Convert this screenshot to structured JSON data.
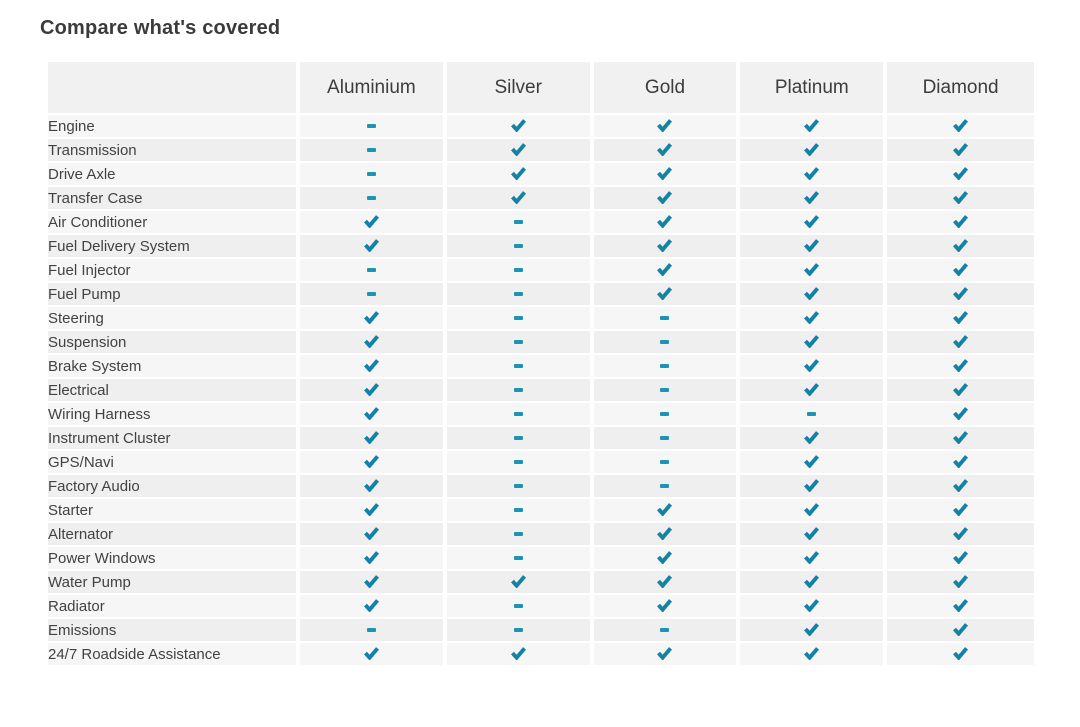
{
  "page": {
    "title": "Compare what's covered"
  },
  "colors": {
    "check_accent": "#1283a6",
    "dash_accent": "#1d93b5",
    "header_bg": "#f1f1f1",
    "row_odd_bg": "#f6f6f6",
    "row_even_bg": "#efefef",
    "title_text": "#3b3b3b",
    "label_text": "#424242"
  },
  "table": {
    "columns": [
      "Aluminium",
      "Silver",
      "Gold",
      "Platinum",
      "Diamond"
    ],
    "legend": {
      "check": "covered",
      "dash": "not-covered"
    },
    "rows": [
      {
        "label": "Engine",
        "values": [
          "dash",
          "check",
          "check",
          "check",
          "check"
        ]
      },
      {
        "label": "Transmission",
        "values": [
          "dash",
          "check",
          "check",
          "check",
          "check"
        ]
      },
      {
        "label": "Drive Axle",
        "values": [
          "dash",
          "check",
          "check",
          "check",
          "check"
        ]
      },
      {
        "label": "Transfer Case",
        "values": [
          "dash",
          "check",
          "check",
          "check",
          "check"
        ]
      },
      {
        "label": "Air Conditioner",
        "values": [
          "check",
          "dash",
          "check",
          "check",
          "check"
        ]
      },
      {
        "label": "Fuel Delivery System",
        "values": [
          "check",
          "dash",
          "check",
          "check",
          "check"
        ]
      },
      {
        "label": "Fuel Injector",
        "values": [
          "dash",
          "dash",
          "check",
          "check",
          "check"
        ]
      },
      {
        "label": "Fuel Pump",
        "values": [
          "dash",
          "dash",
          "check",
          "check",
          "check"
        ]
      },
      {
        "label": "Steering",
        "values": [
          "check",
          "dash",
          "dash",
          "check",
          "check"
        ]
      },
      {
        "label": "Suspension",
        "values": [
          "check",
          "dash",
          "dash",
          "check",
          "check"
        ]
      },
      {
        "label": "Brake System",
        "values": [
          "check",
          "dash",
          "dash",
          "check",
          "check"
        ]
      },
      {
        "label": "Electrical",
        "values": [
          "check",
          "dash",
          "dash",
          "check",
          "check"
        ]
      },
      {
        "label": "Wiring Harness",
        "values": [
          "check",
          "dash",
          "dash",
          "dash",
          "check"
        ]
      },
      {
        "label": "Instrument Cluster",
        "values": [
          "check",
          "dash",
          "dash",
          "check",
          "check"
        ]
      },
      {
        "label": "GPS/Navi",
        "values": [
          "check",
          "dash",
          "dash",
          "check",
          "check"
        ]
      },
      {
        "label": "Factory Audio",
        "values": [
          "check",
          "dash",
          "dash",
          "check",
          "check"
        ]
      },
      {
        "label": "Starter",
        "values": [
          "check",
          "dash",
          "check",
          "check",
          "check"
        ]
      },
      {
        "label": "Alternator",
        "values": [
          "check",
          "dash",
          "check",
          "check",
          "check"
        ]
      },
      {
        "label": "Power Windows",
        "values": [
          "check",
          "dash",
          "check",
          "check",
          "check"
        ]
      },
      {
        "label": "Water Pump",
        "values": [
          "check",
          "check",
          "check",
          "check",
          "check"
        ]
      },
      {
        "label": "Radiator",
        "values": [
          "check",
          "dash",
          "check",
          "check",
          "check"
        ]
      },
      {
        "label": "Emissions",
        "values": [
          "dash",
          "dash",
          "dash",
          "check",
          "check"
        ]
      },
      {
        "label": "24/7 Roadside Assistance",
        "values": [
          "check",
          "check",
          "check",
          "check",
          "check"
        ]
      }
    ]
  }
}
